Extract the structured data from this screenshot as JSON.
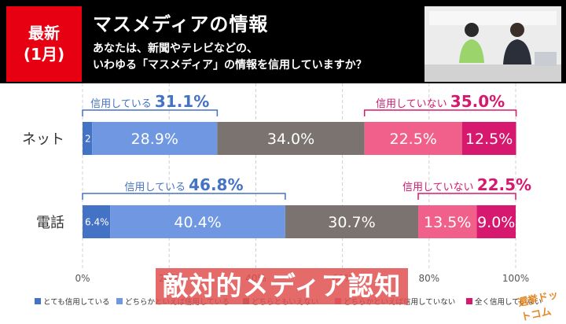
{
  "header": {
    "badge_line1": "最新",
    "badge_line2": "(1月)",
    "title": "マスメディアの情報",
    "question_line1": "あなたは、新聞やテレビなどの、",
    "question_line2": "いわゆる「マスメディア」の情報を信用していますか？"
  },
  "caption": "敵対的メディア認知",
  "logo_text": "選挙ドットコム",
  "chart_data": {
    "type": "bar",
    "stacked": true,
    "orientation": "horizontal",
    "categories": [
      "ネット",
      "電話"
    ],
    "series": [
      {
        "name": "とても信用している",
        "values": [
          2.2,
          6.4
        ],
        "labels": [
          "2.2%",
          "6.4%"
        ],
        "color": "#4472c4"
      },
      {
        "name": "どちらかといえば信用している",
        "values": [
          28.9,
          40.4
        ],
        "labels": [
          "28.9%",
          "40.4%"
        ],
        "color": "#6f97e2"
      },
      {
        "name": "どちらともいえない",
        "values": [
          34.0,
          30.7
        ],
        "labels": [
          "34.0%",
          "30.7%"
        ],
        "color": "#7b7370"
      },
      {
        "name": "どちらかといえば信用していない",
        "values": [
          22.5,
          13.5
        ],
        "labels": [
          "22.5%",
          "13.5%"
        ],
        "color": "#f0608a"
      },
      {
        "name": "全く信用していない",
        "values": [
          12.5,
          9.0
        ],
        "labels": [
          "12.5%",
          "9.0%"
        ],
        "color": "#d6196f"
      }
    ],
    "xlim": [
      0,
      100
    ],
    "x_ticks": [
      "0%",
      "20%",
      "40%",
      "60%",
      "80%",
      "100%"
    ],
    "grid": true,
    "legend_position": "bottom",
    "annotations": [
      {
        "category": "ネット",
        "side": "trust",
        "label": "信用している",
        "value": "31.1%",
        "color": "#4472c4"
      },
      {
        "category": "ネット",
        "side": "distrust",
        "label": "信用していない",
        "value": "35.0%",
        "color": "#d6196f"
      },
      {
        "category": "電話",
        "side": "trust",
        "label": "信用している",
        "value": "46.8%",
        "color": "#4472c4"
      },
      {
        "category": "電話",
        "side": "distrust",
        "label": "信用していない",
        "value": "22.5%",
        "color": "#d6196f"
      }
    ]
  }
}
